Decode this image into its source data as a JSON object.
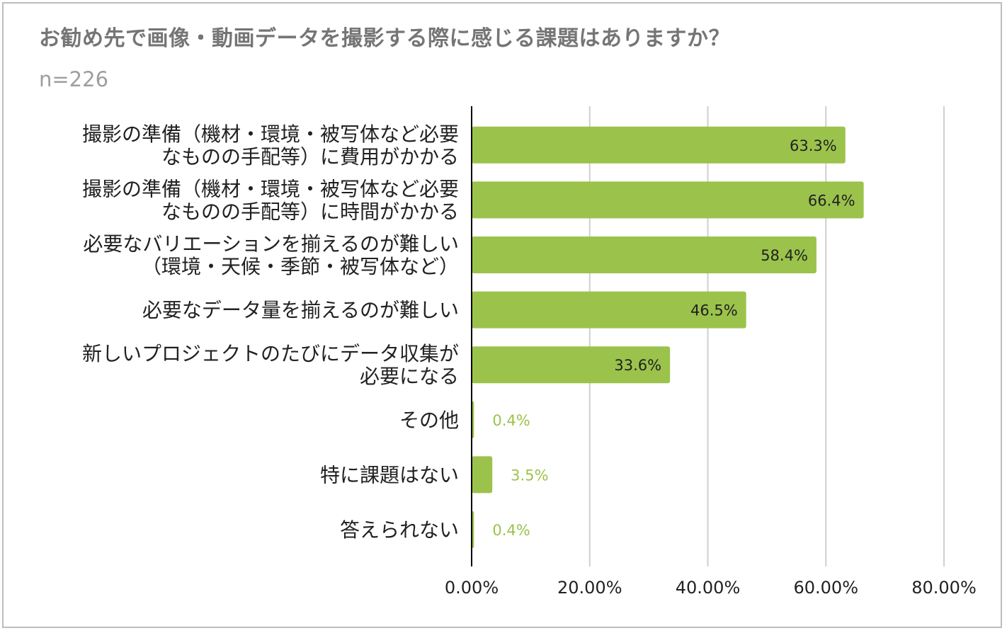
{
  "chart_data": {
    "type": "bar",
    "orientation": "horizontal",
    "title": "お勧め先で画像・動画データを撮影する際に感じる課題はありますか？",
    "subtitle": "n=226",
    "categories": [
      [
        "撮影の準備（機材・環境・被写体など必要",
        "なものの手配等）に費用がかかる"
      ],
      [
        "撮影の準備（機材・環境・被写体など必要",
        "なものの手配等）に時間がかかる"
      ],
      [
        "必要なバリエーションを揃えるのが難しい",
        "（環境・天候・季節・被写体など）"
      ],
      [
        "必要なデータ量を揃えるのが難しい"
      ],
      [
        "新しいプロジェクトのたびにデータ収集が",
        "必要になる"
      ],
      [
        "その他"
      ],
      [
        "特に課題はない"
      ],
      [
        "答えられない"
      ]
    ],
    "values": [
      63.3,
      66.4,
      58.4,
      46.5,
      33.6,
      0.4,
      3.5,
      0.4
    ],
    "value_labels": [
      "63.3%",
      "66.4%",
      "58.4%",
      "46.5%",
      "33.6%",
      "0.4%",
      "3.5%",
      "0.4%"
    ],
    "xlim": [
      0,
      80
    ],
    "xticks": [
      0,
      20,
      40,
      60,
      80
    ],
    "xtick_labels": [
      "0.00%",
      "20.00%",
      "40.00%",
      "60.00%",
      "80.00%"
    ],
    "grid": true,
    "colors": {
      "bar": "#9bc34c",
      "outside_label": "#9bc34c",
      "grid": "#cfcfcf",
      "axis": "#000000"
    }
  }
}
